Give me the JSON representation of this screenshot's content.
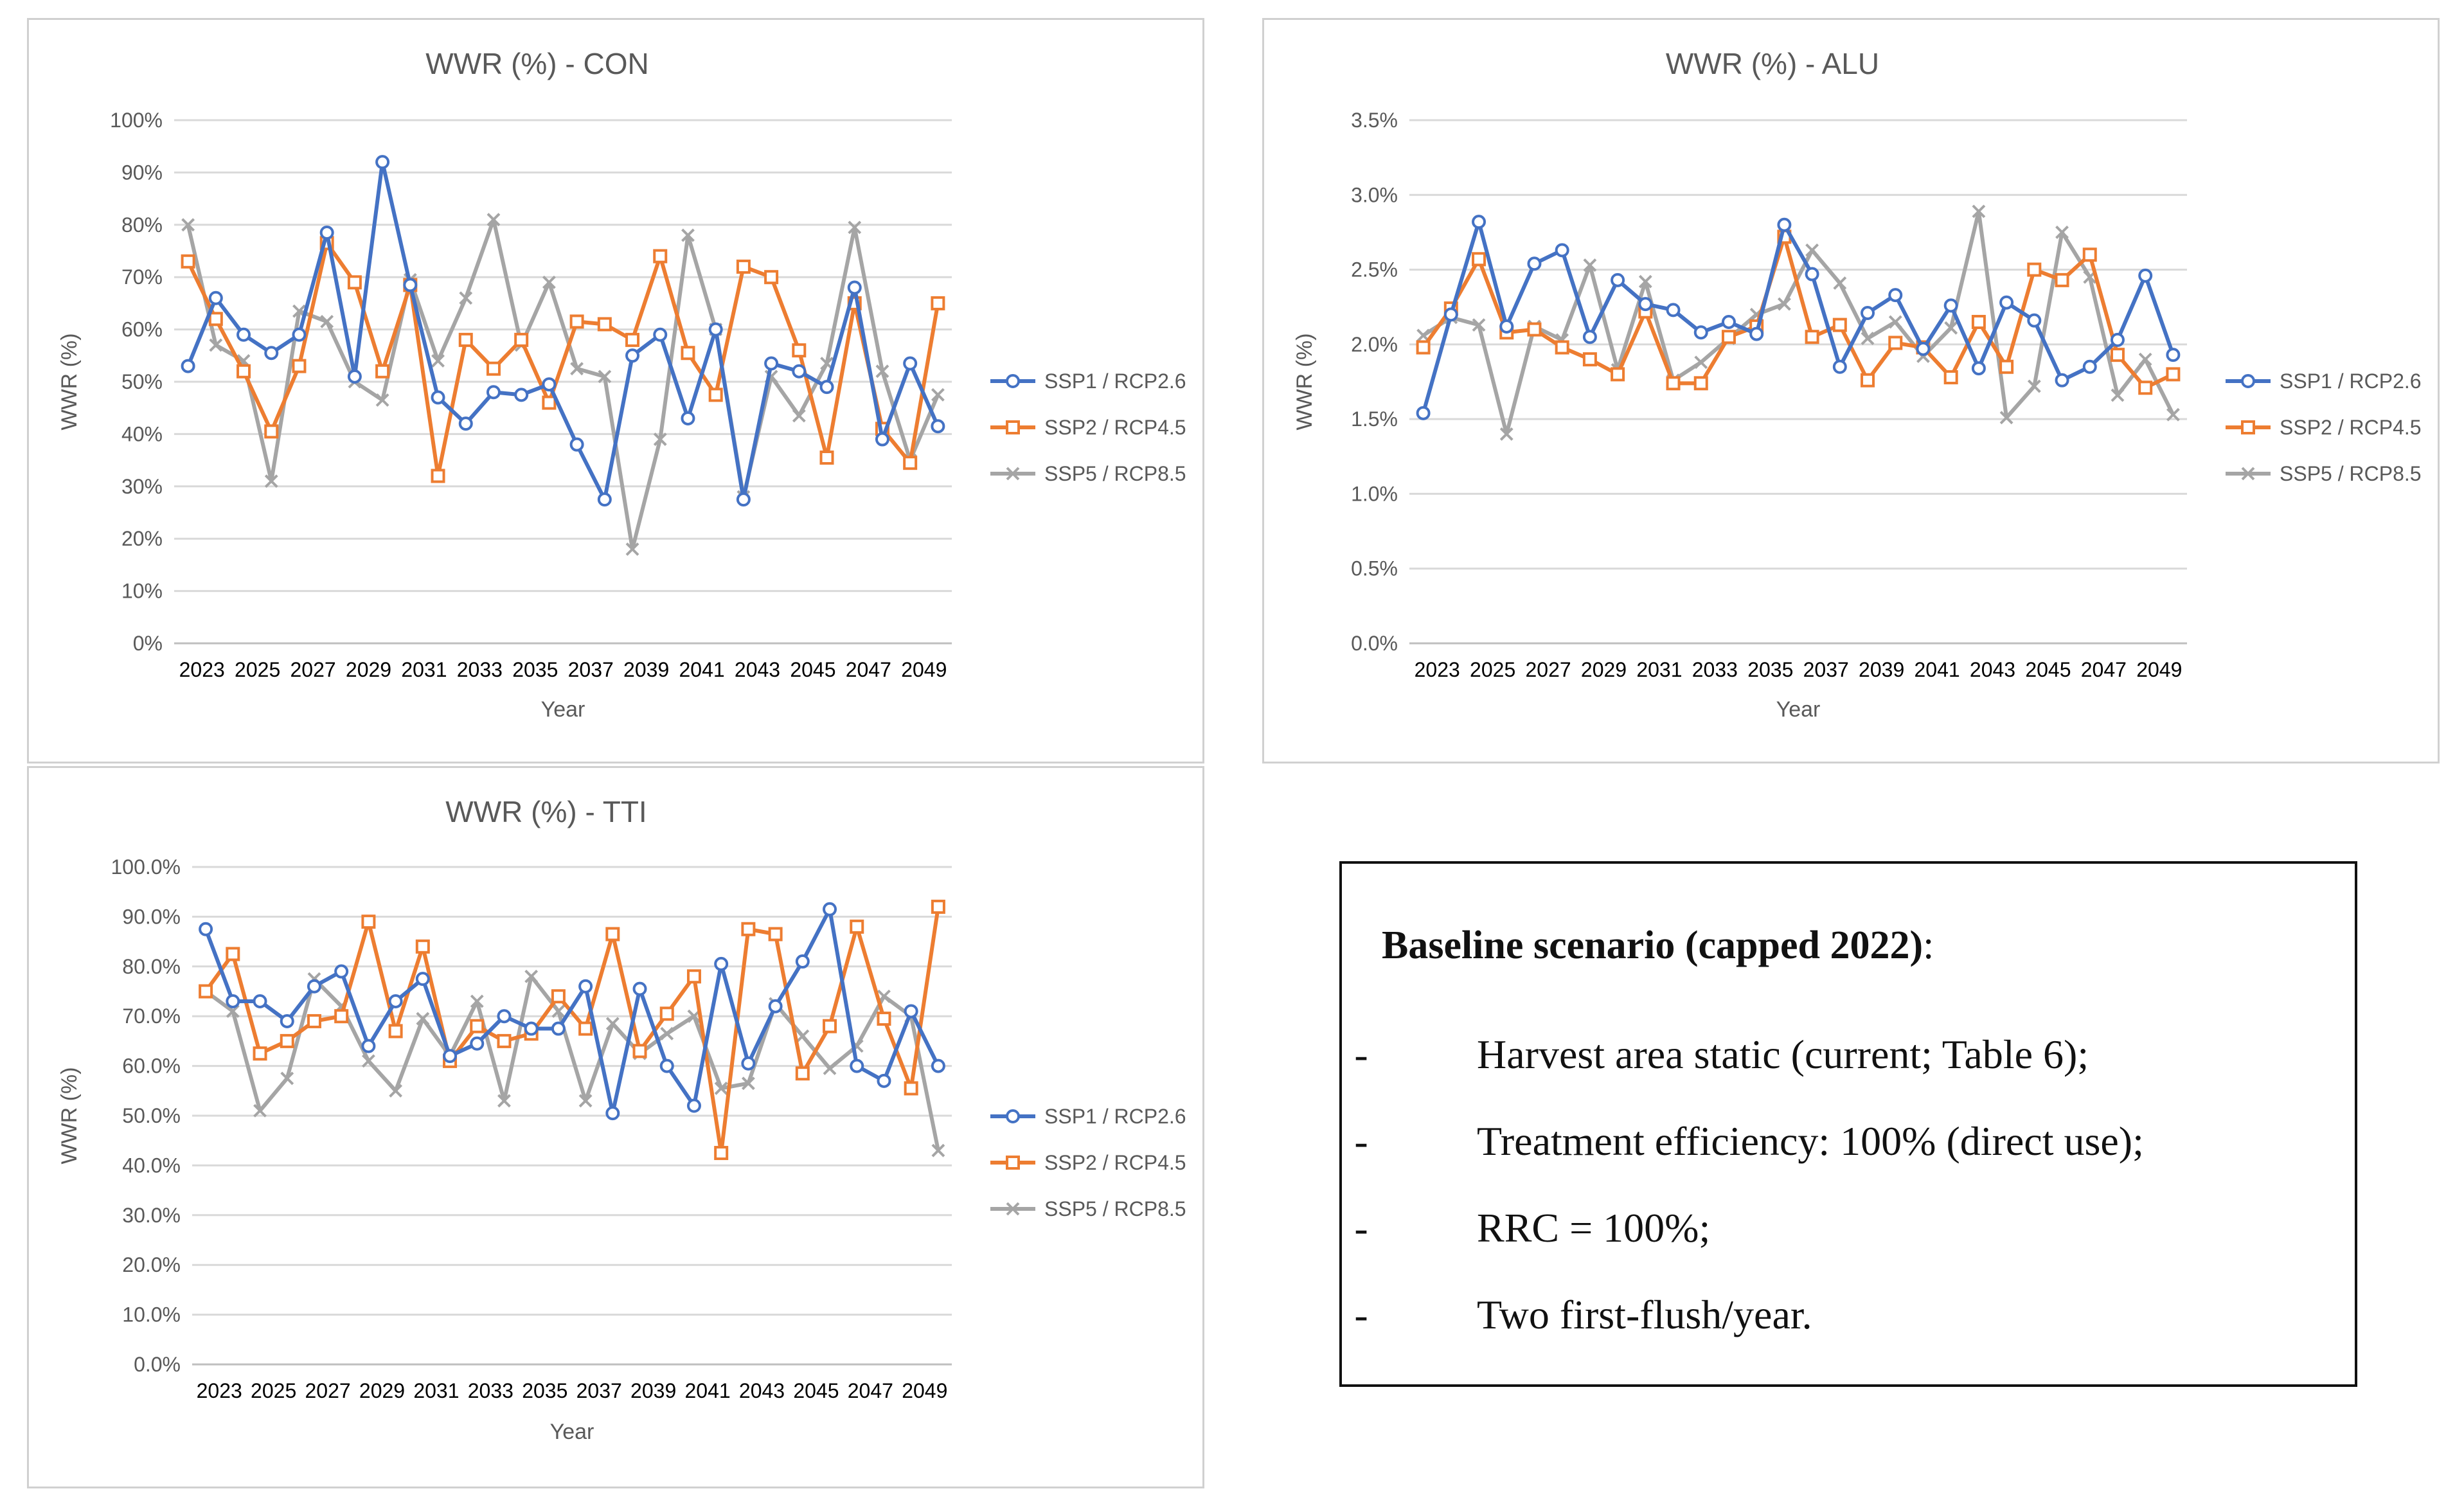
{
  "years": [
    2023,
    2024,
    2025,
    2026,
    2027,
    2028,
    2029,
    2030,
    2031,
    2032,
    2033,
    2034,
    2035,
    2036,
    2037,
    2038,
    2039,
    2040,
    2041,
    2042,
    2043,
    2044,
    2045,
    2046,
    2047,
    2048,
    2049,
    2050
  ],
  "colors": {
    "ssp1": "#4472c4",
    "ssp2": "#ed7d31",
    "ssp5": "#a5a5a5",
    "grid": "#d9d9d9",
    "axis": "#bfbfbf",
    "text": "#595959"
  },
  "chart_data": [
    {
      "id": "con",
      "type": "line",
      "title": "WWR (%) - CON",
      "xlabel": "Year",
      "ylabel": "WWR (%)",
      "ylim": [
        0,
        100
      ],
      "y_ticks": [
        "0%",
        "10%",
        "20%",
        "30%",
        "40%",
        "50%",
        "60%",
        "70%",
        "80%",
        "90%",
        "100%"
      ],
      "x_tick_labels": [
        "2023",
        "2025",
        "2027",
        "2029",
        "2031",
        "2033",
        "2035",
        "2037",
        "2039",
        "2041",
        "2043",
        "2045",
        "2047",
        "2049"
      ],
      "legend_position": "right",
      "series": [
        {
          "name": "SSP1 / RCP2.6",
          "marker": "circle",
          "values": [
            53,
            66,
            59,
            55.5,
            59,
            78.5,
            51,
            92,
            68.5,
            47,
            42,
            48,
            47.5,
            49.5,
            38,
            27.5,
            55,
            59,
            43,
            60,
            27.5,
            53.5,
            52,
            49,
            68,
            39,
            53.5,
            41.5
          ]
        },
        {
          "name": "SSP2 / RCP4.5",
          "marker": "square",
          "values": [
            73,
            62,
            52,
            40.5,
            53,
            76.5,
            69,
            52,
            68.5,
            32,
            58,
            52.5,
            58,
            46,
            61.5,
            61,
            58,
            74,
            55.5,
            47.5,
            72,
            70,
            56,
            35.5,
            65,
            41,
            34.5,
            65
          ]
        },
        {
          "name": "SSP5 / RCP8.5",
          "marker": "x",
          "values": [
            80,
            57,
            54,
            31,
            63.5,
            61.5,
            50,
            46.5,
            69.5,
            54,
            66,
            81,
            57,
            69,
            52.5,
            51,
            18,
            39,
            78,
            60,
            28,
            51,
            43.5,
            53.5,
            79.5,
            52,
            35,
            47.5
          ]
        }
      ]
    },
    {
      "id": "alu",
      "type": "line",
      "title": "WWR (%) - ALU",
      "xlabel": "Year",
      "ylabel": "WWR (%)",
      "ylim": [
        0,
        3.5
      ],
      "y_ticks": [
        "0.0%",
        "0.5%",
        "1.0%",
        "1.5%",
        "2.0%",
        "2.5%",
        "3.0%",
        "3.5%"
      ],
      "x_tick_labels": [
        "2023",
        "2025",
        "2027",
        "2029",
        "2031",
        "2033",
        "2035",
        "2037",
        "2039",
        "2041",
        "2043",
        "2045",
        "2047",
        "2049"
      ],
      "legend_position": "right",
      "series": [
        {
          "name": "SSP1 / RCP2.6",
          "marker": "circle",
          "values": [
            1.54,
            2.2,
            2.82,
            2.12,
            2.54,
            2.63,
            2.05,
            2.43,
            2.27,
            2.23,
            2.08,
            2.15,
            2.07,
            2.8,
            2.47,
            1.85,
            2.21,
            2.33,
            1.97,
            2.26,
            1.84,
            2.28,
            2.16,
            1.76,
            1.85,
            2.03,
            2.46,
            1.93
          ]
        },
        {
          "name": "SSP2 / RCP4.5",
          "marker": "square",
          "values": [
            1.98,
            2.24,
            2.57,
            2.08,
            2.1,
            1.98,
            1.9,
            1.8,
            2.22,
            1.74,
            1.74,
            2.05,
            2.12,
            2.72,
            2.05,
            2.13,
            1.76,
            2.01,
            1.98,
            1.78,
            2.15,
            1.85,
            2.5,
            2.43,
            2.6,
            1.93,
            1.71,
            1.8
          ]
        },
        {
          "name": "SSP5 / RCP8.5",
          "marker": "x",
          "values": [
            2.06,
            2.18,
            2.13,
            1.4,
            2.12,
            2.03,
            2.53,
            1.83,
            2.42,
            1.76,
            1.88,
            2.04,
            2.2,
            2.27,
            2.63,
            2.41,
            2.04,
            2.15,
            1.92,
            2.11,
            2.89,
            1.51,
            1.72,
            2.75,
            2.45,
            1.66,
            1.9,
            1.53
          ]
        }
      ]
    },
    {
      "id": "tti",
      "type": "line",
      "title": "WWR (%) - TTI",
      "xlabel": "Year",
      "ylabel": "WWR (%)",
      "ylim": [
        0,
        100
      ],
      "y_ticks": [
        "0.0%",
        "10.0%",
        "20.0%",
        "30.0%",
        "40.0%",
        "50.0%",
        "60.0%",
        "70.0%",
        "80.0%",
        "90.0%",
        "100.0%"
      ],
      "x_tick_labels": [
        "2023",
        "2025",
        "2027",
        "2029",
        "2031",
        "2033",
        "2035",
        "2037",
        "2039",
        "2041",
        "2043",
        "2045",
        "2047",
        "2049"
      ],
      "legend_position": "right",
      "series": [
        {
          "name": "SSP1 / RCP2.6",
          "marker": "circle",
          "values": [
            87.5,
            73,
            73,
            69,
            76,
            79,
            64,
            73,
            77.5,
            62,
            64.5,
            70,
            67.5,
            67.5,
            76,
            50.5,
            75.5,
            60,
            52,
            80.5,
            60.5,
            72,
            81,
            91.5,
            60,
            57,
            71,
            60
          ]
        },
        {
          "name": "SSP2 / RCP4.5",
          "marker": "square",
          "values": [
            75,
            82.5,
            62.5,
            65,
            69,
            70,
            89,
            67,
            84,
            61,
            68,
            65,
            66.5,
            74,
            67.5,
            86.5,
            63,
            70.5,
            78,
            42.5,
            87.5,
            86.5,
            58.5,
            68,
            88,
            69.5,
            55.5,
            92
          ]
        },
        {
          "name": "SSP5 / RCP8.5",
          "marker": "x",
          "values": [
            75,
            71,
            51,
            57.5,
            77.5,
            72,
            61,
            55,
            69.5,
            62,
            73,
            53,
            78,
            71,
            53,
            68.5,
            62.5,
            66.5,
            70,
            55.5,
            56.5,
            72.5,
            66,
            59.5,
            64,
            74,
            70,
            43
          ]
        }
      ]
    }
  ],
  "note": {
    "title_bold": "Baseline scenario (capped 2022)",
    "title_tail": ":",
    "dash": "-",
    "items": [
      "Harvest area static (current; Table 6);",
      "Treatment efficiency: 100% (direct use);",
      "RRC = 100%;",
      "Two first-flush/year."
    ]
  }
}
